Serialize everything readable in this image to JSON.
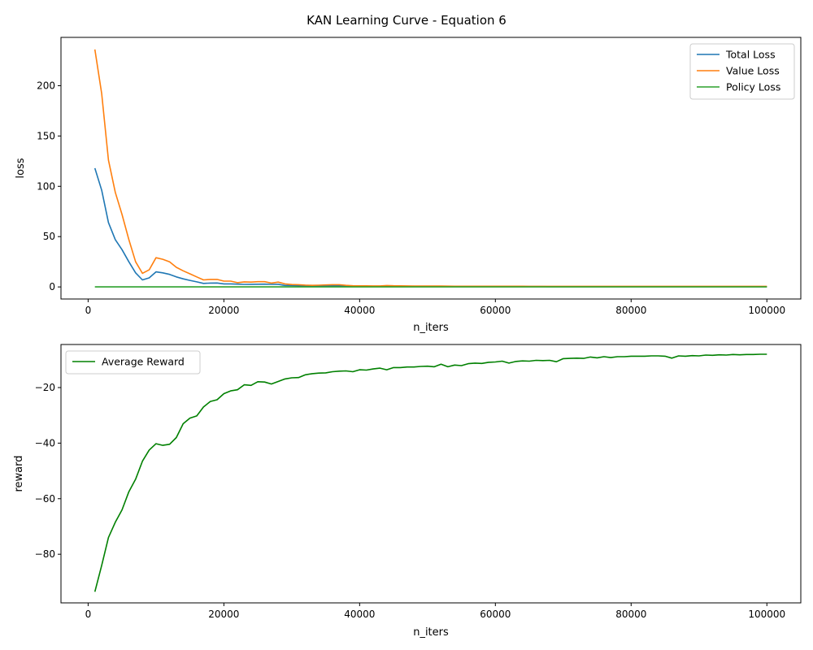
{
  "figure": {
    "suptitle": "KAN Learning Curve - Equation 6"
  },
  "chart_data": [
    {
      "type": "line",
      "xlabel": "n_iters",
      "ylabel": "loss",
      "xlim": [
        -4000,
        105000
      ],
      "ylim": [
        -12,
        248
      ],
      "xticks": [
        0,
        20000,
        40000,
        60000,
        80000,
        100000
      ],
      "xtick_labels": [
        "0",
        "20000",
        "40000",
        "60000",
        "80000",
        "100000"
      ],
      "yticks": [
        0,
        50,
        100,
        150,
        200
      ],
      "ytick_labels": [
        "0",
        "50",
        "100",
        "150",
        "200"
      ],
      "grid": false,
      "legend_position": "top-right",
      "x": [
        1000,
        2000,
        3000,
        4000,
        5000,
        6000,
        7000,
        8000,
        9000,
        10000,
        11000,
        12000,
        13000,
        14000,
        15000,
        16000,
        17000,
        18000,
        19000,
        20000,
        21000,
        22000,
        23000,
        24000,
        25000,
        26000,
        27000,
        28000,
        29000,
        30000,
        31000,
        32000,
        33000,
        34000,
        35000,
        36000,
        37000,
        38000,
        39000,
        40000,
        41000,
        42000,
        43000,
        44000,
        45000,
        46000,
        47000,
        48000,
        49000,
        50000,
        51000,
        52000,
        53000,
        54000,
        55000,
        56000,
        57000,
        58000,
        59000,
        60000,
        61000,
        62000,
        63000,
        64000,
        65000,
        66000,
        67000,
        68000,
        69000,
        70000,
        71000,
        72000,
        73000,
        74000,
        75000,
        76000,
        77000,
        78000,
        79000,
        80000,
        81000,
        82000,
        83000,
        84000,
        85000,
        86000,
        87000,
        88000,
        89000,
        90000,
        91000,
        92000,
        93000,
        94000,
        95000,
        96000,
        97000,
        98000,
        99000,
        100000
      ],
      "series": [
        {
          "name": "Total Loss",
          "color": "#1f77b4",
          "values": [
            118,
            96,
            64,
            47,
            37,
            25,
            14,
            7,
            9,
            15,
            14,
            12.5,
            10,
            8,
            6.5,
            5,
            3.5,
            3.8,
            3.9,
            3,
            3,
            2.8,
            2.5,
            2.6,
            2.7,
            2.8,
            2.5,
            2.6,
            1.5,
            1.3,
            1.2,
            1,
            0.9,
            0.9,
            1,
            1.2,
            1.2,
            1.1,
            0.8,
            0.7,
            0.6,
            0.6,
            0.6,
            0.8,
            0.7,
            0.6,
            0.6,
            0.5,
            0.5,
            0.5,
            0.45,
            0.4,
            0.4,
            0.4,
            0.4,
            0.4,
            0.4,
            0.35,
            0.35,
            0.35,
            0.35,
            0.35,
            0.35,
            0.35,
            0.35,
            0.35,
            0.35,
            0.3,
            0.3,
            0.3,
            0.3,
            0.3,
            0.3,
            0.3,
            0.3,
            0.3,
            0.3,
            0.3,
            0.3,
            0.3,
            0.3,
            0.3,
            0.3,
            0.3,
            0.3,
            0.3,
            0.3,
            0.3,
            0.3,
            0.3,
            0.3,
            0.3,
            0.3,
            0.3,
            0.3,
            0.3,
            0.3,
            0.3,
            0.3,
            0.3
          ]
        },
        {
          "name": "Value Loss",
          "color": "#ff7f0e",
          "values": [
            236,
            192,
            126,
            94,
            72,
            47,
            25,
            13.5,
            17,
            29,
            27.5,
            25,
            19.5,
            16,
            13,
            10,
            7,
            7.5,
            7.5,
            5.8,
            5.8,
            4.2,
            5,
            4.8,
            5.2,
            5.2,
            3.8,
            4.8,
            3,
            2.4,
            2.2,
            1.8,
            1.6,
            1.7,
            2,
            2.2,
            2.2,
            1.6,
            1.2,
            1.1,
            1.1,
            1,
            1,
            1.4,
            1.2,
            1.1,
            1,
            0.9,
            0.9,
            0.9,
            0.8,
            0.8,
            0.75,
            0.7,
            0.7,
            0.7,
            0.7,
            0.65,
            0.65,
            0.65,
            0.65,
            0.65,
            0.65,
            0.65,
            0.6,
            0.6,
            0.6,
            0.6,
            0.6,
            0.6,
            0.6,
            0.6,
            0.6,
            0.6,
            0.6,
            0.6,
            0.6,
            0.6,
            0.6,
            0.6,
            0.6,
            0.6,
            0.6,
            0.6,
            0.6,
            0.6,
            0.6,
            0.6,
            0.6,
            0.6,
            0.6,
            0.6,
            0.6,
            0.6,
            0.6,
            0.6,
            0.6,
            0.6,
            0.6,
            0.6
          ]
        },
        {
          "name": "Policy Loss",
          "color": "#2ca02c",
          "values": [
            0.05,
            0.05,
            0.05,
            0.05,
            0.05,
            0.05,
            0.05,
            0.05,
            0.05,
            0.05,
            0.05,
            0.05,
            0.05,
            0.05,
            0.05,
            0.05,
            0.05,
            0.05,
            0.05,
            0.05,
            0.05,
            0.05,
            0.05,
            0.05,
            0.05,
            0.05,
            0.05,
            0.05,
            0.05,
            0.05,
            0.05,
            0.05,
            0.05,
            0.05,
            0.05,
            0.05,
            0.05,
            0.05,
            0.05,
            0.05,
            0.05,
            0.05,
            0.05,
            0.05,
            0.05,
            0.05,
            0.05,
            0.05,
            0.05,
            0.05,
            0.05,
            0.05,
            0.05,
            0.05,
            0.05,
            0.05,
            0.05,
            0.05,
            0.05,
            0.05,
            0.05,
            0.05,
            0.05,
            0.05,
            0.05,
            0.05,
            0.05,
            0.05,
            0.05,
            0.05,
            0.05,
            0.05,
            0.05,
            0.05,
            0.05,
            0.05,
            0.05,
            0.05,
            0.05,
            0.05,
            0.05,
            0.05,
            0.05,
            0.05,
            0.05,
            0.05,
            0.05,
            0.05,
            0.05,
            0.05,
            0.05,
            0.05,
            0.05,
            0.05,
            0.05,
            0.05,
            0.05,
            0.05,
            0.05,
            0.05
          ]
        }
      ]
    },
    {
      "type": "line",
      "xlabel": "n_iters",
      "ylabel": "reward",
      "xlim": [
        -4000,
        105000
      ],
      "ylim": [
        -97.5,
        -4.5
      ],
      "xticks": [
        0,
        20000,
        40000,
        60000,
        80000,
        100000
      ],
      "xtick_labels": [
        "0",
        "20000",
        "40000",
        "60000",
        "80000",
        "100000"
      ],
      "yticks": [
        -80,
        -60,
        -40,
        -20
      ],
      "ytick_labels": [
        "−80",
        "−60",
        "−40",
        "−20"
      ],
      "grid": false,
      "legend_position": "top-left",
      "x": [
        1000,
        2000,
        3000,
        4000,
        5000,
        6000,
        7000,
        8000,
        9000,
        10000,
        11000,
        12000,
        13000,
        14000,
        15000,
        16000,
        17000,
        18000,
        19000,
        20000,
        21000,
        22000,
        23000,
        24000,
        25000,
        26000,
        27000,
        28000,
        29000,
        30000,
        31000,
        32000,
        33000,
        34000,
        35000,
        36000,
        37000,
        38000,
        39000,
        40000,
        41000,
        42000,
        43000,
        44000,
        45000,
        46000,
        47000,
        48000,
        49000,
        50000,
        51000,
        52000,
        53000,
        54000,
        55000,
        56000,
        57000,
        58000,
        59000,
        60000,
        61000,
        62000,
        63000,
        64000,
        65000,
        66000,
        67000,
        68000,
        69000,
        70000,
        71000,
        72000,
        73000,
        74000,
        75000,
        76000,
        77000,
        78000,
        79000,
        80000,
        81000,
        82000,
        83000,
        84000,
        85000,
        86000,
        87000,
        88000,
        89000,
        90000,
        91000,
        92000,
        93000,
        94000,
        95000,
        96000,
        97000,
        98000,
        99000,
        100000
      ],
      "series": [
        {
          "name": "Average Reward",
          "color": "#008000",
          "values": [
            -93.5,
            -84,
            -74,
            -68.5,
            -64,
            -57.5,
            -53,
            -46.5,
            -42.5,
            -40.2,
            -40.8,
            -40.4,
            -38,
            -33,
            -31,
            -30.2,
            -27,
            -25,
            -24.4,
            -22.2,
            -21.2,
            -20.8,
            -19,
            -19.2,
            -17.9,
            -18,
            -18.7,
            -17.8,
            -16.9,
            -16.5,
            -16.4,
            -15.4,
            -15,
            -14.8,
            -14.7,
            -14.3,
            -14.1,
            -14.0,
            -14.3,
            -13.6,
            -13.7,
            -13.3,
            -13.0,
            -13.6,
            -12.8,
            -12.8,
            -12.6,
            -12.6,
            -12.4,
            -12.3,
            -12.5,
            -11.6,
            -12.5,
            -11.9,
            -12.1,
            -11.4,
            -11.2,
            -11.3,
            -10.9,
            -10.8,
            -10.5,
            -11.2,
            -10.6,
            -10.4,
            -10.5,
            -10.2,
            -10.3,
            -10.2,
            -10.7,
            -9.6,
            -9.5,
            -9.4,
            -9.5,
            -9.0,
            -9.3,
            -8.9,
            -9.2,
            -8.9,
            -8.9,
            -8.7,
            -8.7,
            -8.7,
            -8.6,
            -8.6,
            -8.7,
            -9.4,
            -8.6,
            -8.7,
            -8.5,
            -8.6,
            -8.3,
            -8.4,
            -8.2,
            -8.3,
            -8.1,
            -8.2,
            -8.1,
            -8.1,
            -8.0,
            -8.0
          ]
        }
      ]
    }
  ]
}
